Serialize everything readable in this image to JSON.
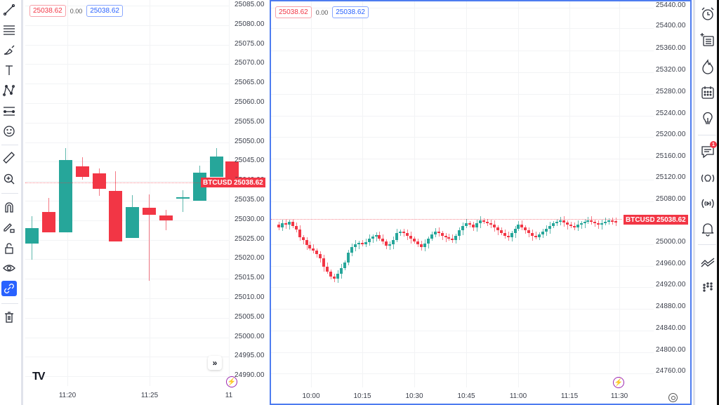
{
  "left_pane": {
    "legend": {
      "open": "25038.62",
      "change": "0.00",
      "close": "25038.62"
    },
    "price_ticks": [
      "25085.00",
      "25080.00",
      "25075.00",
      "25070.00",
      "25065.00",
      "25060.00",
      "25055.00",
      "25050.00",
      "25045.00",
      "25040.00",
      "25035.00",
      "25030.00",
      "25025.00",
      "25020.00",
      "25015.00",
      "25010.00",
      "25005.00",
      "25000.00",
      "24995.00",
      "24990.00"
    ],
    "time_ticks": [
      "11:20",
      "11:25",
      "11"
    ],
    "symbol_tag": "BTCUSD",
    "last_price": "25038.62",
    "scroll_button": "»",
    "logo": "TV"
  },
  "right_pane": {
    "legend": {
      "open": "25038.62",
      "change": "0.00",
      "close": "25038.62"
    },
    "price_ticks": [
      "25440.00",
      "25400.00",
      "25360.00",
      "25320.00",
      "25280.00",
      "25240.00",
      "25200.00",
      "25160.00",
      "25120.00",
      "25080.00",
      "25000.00",
      "24960.00",
      "24920.00",
      "24880.00",
      "24840.00",
      "24800.00",
      "24760.00"
    ],
    "time_ticks": [
      "10:00",
      "10:15",
      "10:30",
      "10:45",
      "11:00",
      "11:15",
      "11:30"
    ],
    "symbol_tag": "BTCUSD",
    "last_price": "25038.62"
  },
  "left_toolbar": {
    "tools": [
      "trend-line",
      "horizontal-lines",
      "brush",
      "text",
      "pattern",
      "forecast",
      "emoji",
      "ruler",
      "zoom-in",
      "magnet",
      "lock-drawings",
      "lock",
      "eye",
      "link",
      "trash"
    ]
  },
  "right_toolbar": {
    "tools": [
      "alarm",
      "watchlist-add",
      "hotlist",
      "calendar",
      "ideas",
      "chat",
      "streams",
      "broadcast",
      "notifications",
      "expand",
      "more"
    ],
    "chat_badge": "1"
  },
  "colors": {
    "up": "#26a69a",
    "down": "#f23645",
    "accent": "#2962ff"
  }
}
